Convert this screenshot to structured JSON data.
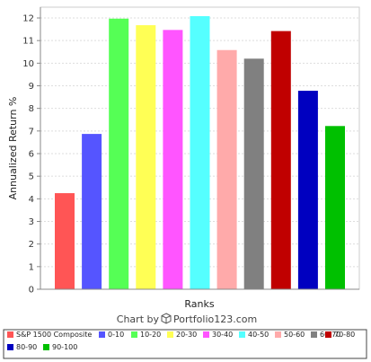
{
  "chart_data": {
    "type": "bar",
    "xlabel": "Ranks",
    "ylabel": "Annualized Return %",
    "ylim": [
      0,
      12
    ],
    "yticks": [
      0,
      1,
      2,
      3,
      4,
      5,
      6,
      7,
      8,
      9,
      10,
      11,
      12
    ],
    "grid": true,
    "legend_position": "bottom",
    "categories": [
      "S&P 1500 Composite",
      "0-10",
      "10-20",
      "20-30",
      "30-40",
      "40-50",
      "50-60",
      "60-70",
      "70-80",
      "80-90",
      "90-100"
    ],
    "values": [
      4.25,
      6.87,
      11.97,
      11.68,
      11.47,
      12.08,
      10.58,
      10.2,
      11.42,
      8.78,
      7.22
    ],
    "colors": [
      "#ff5555",
      "#5555ff",
      "#55ff55",
      "#ffff55",
      "#ff55ff",
      "#55ffff",
      "#ffaaaa",
      "#808080",
      "#c00000",
      "#0000c0",
      "#00c000"
    ]
  },
  "footer": {
    "credit_prefix": "Chart by",
    "credit_brand": "Portfolio123.com",
    "logo_icon": "cube-icon"
  }
}
